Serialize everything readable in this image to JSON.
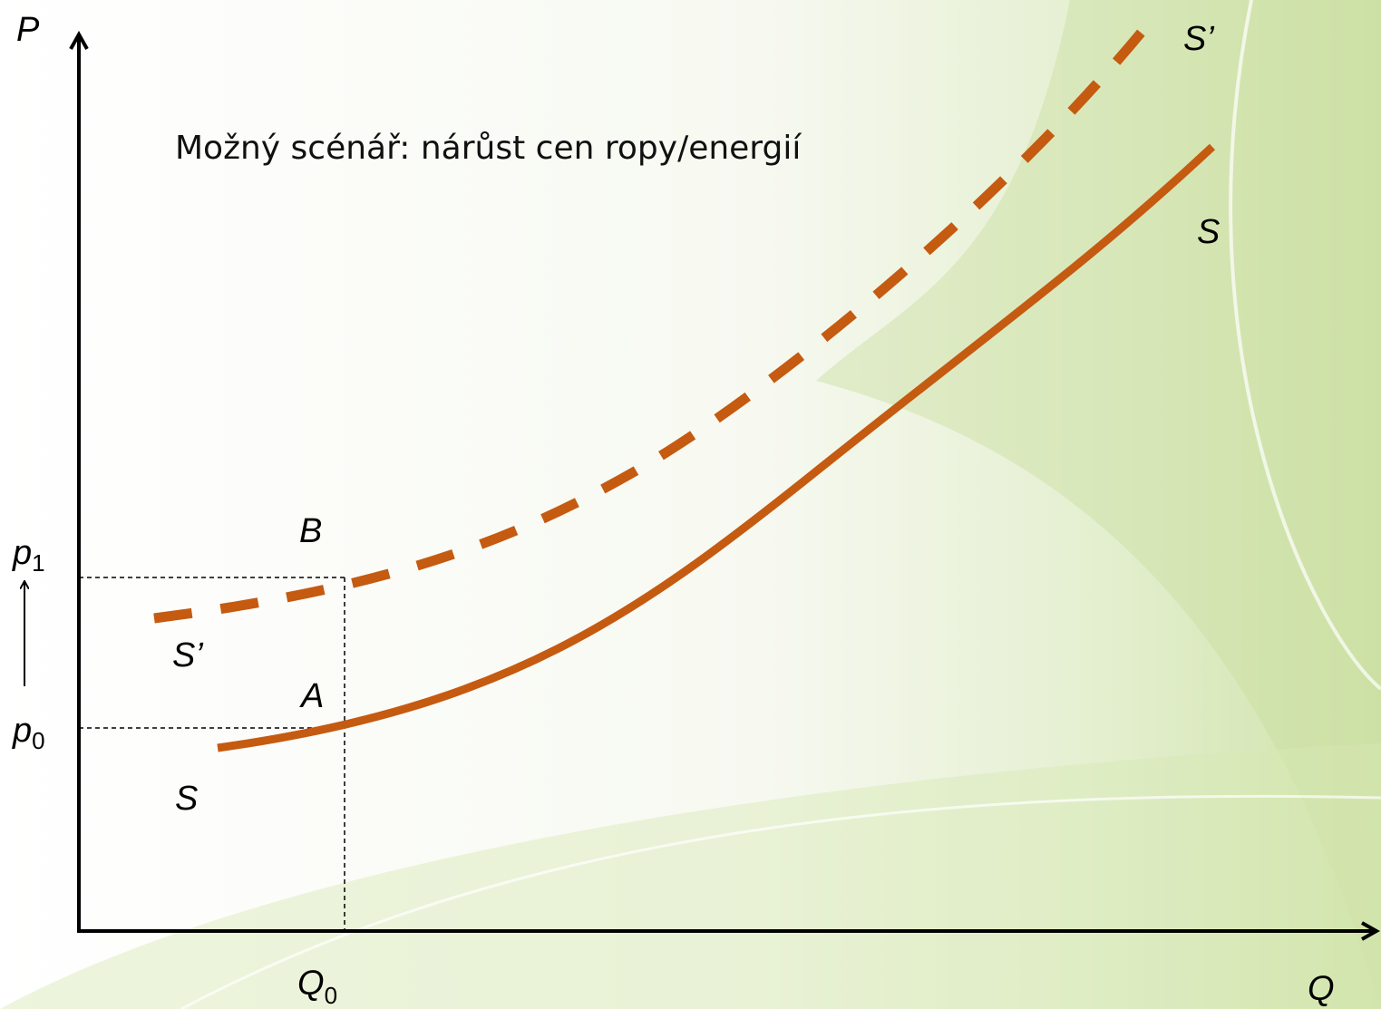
{
  "axes": {
    "y_label": "P",
    "x_label": "Q"
  },
  "title": "Možný scénář: nárůst cen ropy/energií",
  "curves": {
    "new_supply": {
      "label_top": "S’",
      "label_bottom": "S’"
    },
    "supply": {
      "label_top": "S",
      "label_bottom": "S"
    }
  },
  "points": {
    "B": "B",
    "A": "A"
  },
  "levels": {
    "p1": {
      "base": "p",
      "sub": "1"
    },
    "p0": {
      "base": "p",
      "sub": "0"
    },
    "Q0": {
      "base": "Q",
      "sub": "0"
    }
  }
}
